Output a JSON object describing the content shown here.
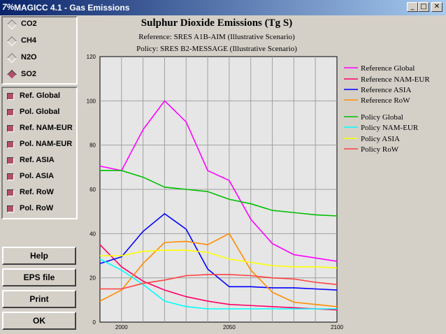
{
  "window": {
    "title": "MAGICC 4.1 - Gas Emissions",
    "app_icon": "7%",
    "min": "_",
    "max": "□",
    "close": "✕"
  },
  "gases": [
    {
      "label": "CO2",
      "selected": false
    },
    {
      "label": "CH4",
      "selected": false
    },
    {
      "label": "N2O",
      "selected": false
    },
    {
      "label": "SO2",
      "selected": true
    }
  ],
  "checks": [
    {
      "label": "Ref. Global"
    },
    {
      "label": "Pol. Global"
    },
    {
      "label": "Ref. NAM-EUR"
    },
    {
      "label": "Pol. NAM-EUR"
    },
    {
      "label": "Ref. ASIA"
    },
    {
      "label": "Pol. ASIA"
    },
    {
      "label": "Ref. RoW"
    },
    {
      "label": "Pol. RoW"
    }
  ],
  "buttons": {
    "help": "Help",
    "eps": "EPS file",
    "print": "Print",
    "ok": "OK"
  },
  "chart_data": {
    "type": "line",
    "title": "Sulphur Dioxide Emissions (Tg S)",
    "subtitle1": "Reference: SRES A1B-AIM (Illustrative Scenario)",
    "subtitle2": "Policy: SRES B2-MESSAGE (Illustrative Scenario)",
    "xlim": [
      1990,
      2100
    ],
    "ylim": [
      0,
      120
    ],
    "xticks": [
      2000,
      2050,
      2100
    ],
    "yticks": [
      0,
      20,
      40,
      60,
      80,
      100,
      120
    ],
    "grid": true,
    "legend_position": "right",
    "x": [
      1990,
      2000,
      2010,
      2020,
      2030,
      2040,
      2050,
      2060,
      2070,
      2080,
      2090,
      2100
    ],
    "series": [
      {
        "name": "Reference Global",
        "color": "#ff00ff",
        "values": [
          70.5,
          68.5,
          87,
          100,
          90.5,
          68.5,
          64,
          46.5,
          35.5,
          30.5,
          29,
          27.5
        ]
      },
      {
        "name": "Reference NAM-EUR",
        "color": "#ff0066",
        "values": [
          35,
          25,
          18.5,
          14.5,
          11.5,
          9.5,
          8,
          7.5,
          7,
          6.5,
          6,
          5.5
        ]
      },
      {
        "name": "Reference ASIA",
        "color": "#0000ff",
        "values": [
          26.5,
          29.5,
          41,
          49,
          42,
          24,
          16,
          16,
          15.5,
          15.5,
          15,
          14.5
        ]
      },
      {
        "name": "Reference RoW",
        "color": "#ff8c00",
        "values": [
          9.5,
          14.5,
          26.5,
          36,
          36.5,
          35,
          40,
          23.5,
          13.5,
          9,
          8,
          7
        ]
      },
      {
        "name": "Policy Global",
        "color": "#00c000",
        "values": [
          68.5,
          68.5,
          65.5,
          61,
          60,
          59,
          55.5,
          53.5,
          50.5,
          49.5,
          48.5,
          48
        ]
      },
      {
        "name": "Policy NAM-EUR",
        "color": "#00ffff",
        "values": [
          28.5,
          23.5,
          17,
          9.5,
          7,
          6,
          6,
          6,
          6,
          6,
          6,
          6
        ]
      },
      {
        "name": "Policy ASIA",
        "color": "#ffff00",
        "values": [
          30,
          30,
          32,
          32.5,
          32.5,
          31.5,
          28.5,
          27,
          25.5,
          25,
          25,
          24.5
        ]
      },
      {
        "name": "Policy RoW",
        "color": "#ff4040",
        "values": [
          15,
          15,
          17.5,
          19,
          21,
          21.5,
          21.5,
          21,
          20,
          19.5,
          18,
          17
        ]
      }
    ]
  }
}
